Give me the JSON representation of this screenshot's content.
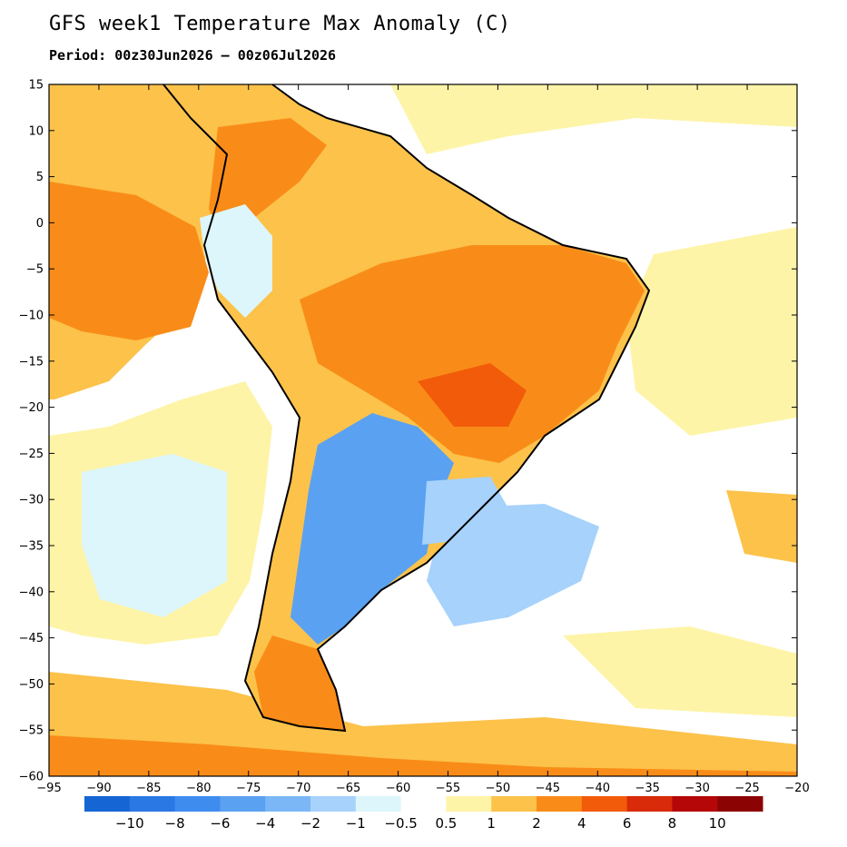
{
  "title": "GFS week1 Temperature Max Anomaly (C)",
  "subtitle": "Period: 00z30Jun2026 – 00z06Jul2026",
  "map": {
    "lon_range": [
      -95,
      -20
    ],
    "lat_range": [
      -60,
      15
    ],
    "lon_ticks": [
      "−95",
      "−90",
      "−85",
      "−80",
      "−75",
      "−70",
      "−65",
      "−60",
      "−55",
      "−50",
      "−45",
      "−40",
      "−35",
      "−30",
      "−25",
      "−20"
    ],
    "lat_ticks": [
      "15",
      "10",
      "5",
      "0",
      "−5",
      "−10",
      "−15",
      "−20",
      "−25",
      "−30",
      "−35",
      "−40",
      "−45",
      "−50",
      "−55",
      "−60"
    ]
  },
  "colorbar": {
    "labels": [
      "−10",
      "−8",
      "−6",
      "−4",
      "−2",
      "−1",
      "−0.5",
      "0.5",
      "1",
      "2",
      "4",
      "6",
      "8",
      "10"
    ],
    "colors": [
      "#1565d4",
      "#2a78e4",
      "#3f8cef",
      "#5aa1f2",
      "#7bb7f6",
      "#a6d2fb",
      "#dcf6fb",
      "#ffffff",
      "#fef4a8",
      "#fcc24a",
      "#f98c18",
      "#f25b0a",
      "#d92a0a",
      "#b50707",
      "#8c0303"
    ]
  }
}
